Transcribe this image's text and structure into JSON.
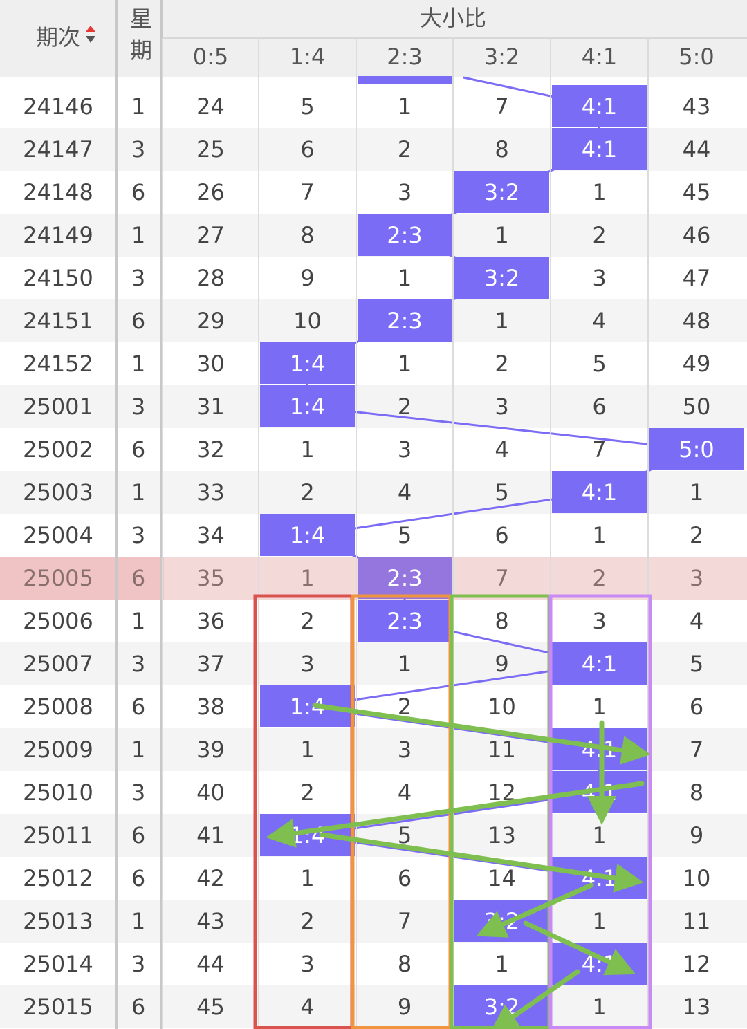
{
  "header": {
    "period": "期次",
    "week": "星期",
    "group": "大小比",
    "columns": [
      "0:5",
      "1:4",
      "2:3",
      "3:2",
      "4:1",
      "5:0"
    ]
  },
  "rows": [
    [
      "24146",
      "1",
      "24",
      "5",
      "1",
      "7",
      "4:1",
      "43"
    ],
    [
      "24147",
      "3",
      "25",
      "6",
      "2",
      "8",
      "4:1",
      "44"
    ],
    [
      "24148",
      "6",
      "26",
      "7",
      "3",
      "3:2",
      "1",
      "45"
    ],
    [
      "24149",
      "1",
      "27",
      "8",
      "2:3",
      "1",
      "2",
      "46"
    ],
    [
      "24150",
      "3",
      "28",
      "9",
      "1",
      "3:2",
      "3",
      "47"
    ],
    [
      "24151",
      "6",
      "29",
      "10",
      "2:3",
      "1",
      "4",
      "48"
    ],
    [
      "24152",
      "1",
      "30",
      "1:4",
      "1",
      "2",
      "5",
      "49"
    ],
    [
      "25001",
      "3",
      "31",
      "1:4",
      "2",
      "3",
      "6",
      "50"
    ],
    [
      "25002",
      "6",
      "32",
      "1",
      "3",
      "4",
      "7",
      "5:0"
    ],
    [
      "25003",
      "1",
      "33",
      "2",
      "4",
      "5",
      "4:1",
      "1"
    ],
    [
      "25004",
      "3",
      "34",
      "1:4",
      "5",
      "6",
      "1",
      "2"
    ],
    [
      "25005",
      "6",
      "35",
      "1",
      "2:3",
      "7",
      "2",
      "3"
    ],
    [
      "25006",
      "1",
      "36",
      "2",
      "2:3",
      "8",
      "3",
      "4"
    ],
    [
      "25007",
      "3",
      "37",
      "3",
      "1",
      "9",
      "4:1",
      "5"
    ],
    [
      "25008",
      "6",
      "38",
      "1:4",
      "2",
      "10",
      "1",
      "6"
    ],
    [
      "25009",
      "1",
      "39",
      "1",
      "3",
      "11",
      "4:1",
      "7"
    ],
    [
      "25010",
      "3",
      "40",
      "2",
      "4",
      "12",
      "4:1",
      "8"
    ],
    [
      "25011",
      "6",
      "41",
      "1:4",
      "5",
      "13",
      "1",
      "9"
    ],
    [
      "25012",
      "6",
      "42",
      "1",
      "6",
      "14",
      "4:1",
      "10"
    ],
    [
      "25013",
      "1",
      "43",
      "2",
      "7",
      "3:2",
      "1",
      "11"
    ],
    [
      "25014",
      "3",
      "44",
      "3",
      "8",
      "1",
      "4:1",
      "12"
    ],
    [
      "25015",
      "6",
      "45",
      "4",
      "9",
      "3:2",
      "1",
      "13"
    ]
  ]
}
